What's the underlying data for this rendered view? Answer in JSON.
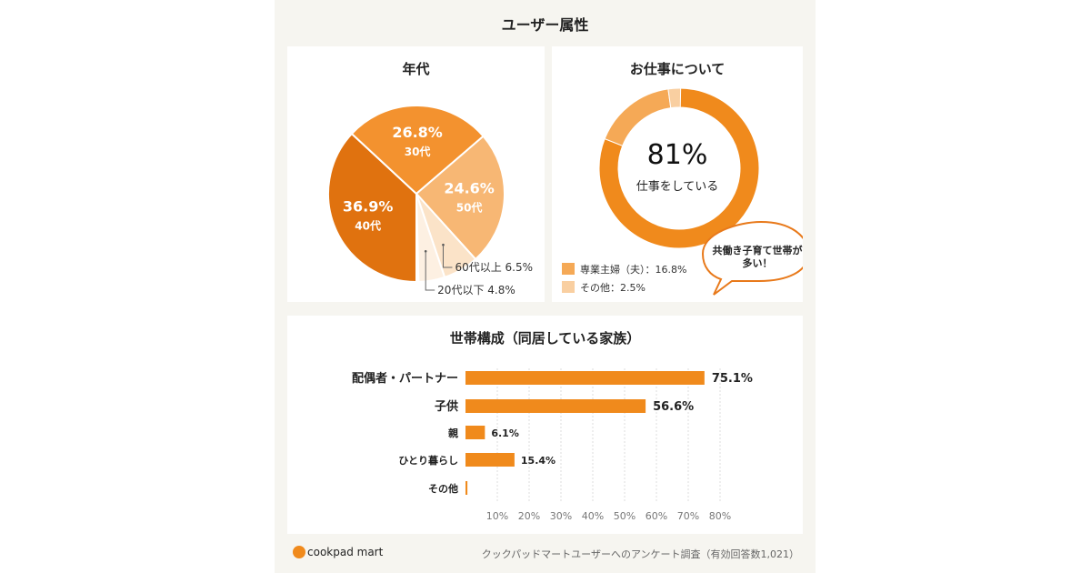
{
  "title": "ユーザー属性",
  "chart_data": [
    {
      "type": "pie",
      "title": "年代",
      "slices": [
        {
          "label": "40代",
          "value": 36.9,
          "display": "36.9%",
          "color": "#e0720f"
        },
        {
          "label": "30代",
          "value": 26.8,
          "display": "26.8%",
          "color": "#f3922f"
        },
        {
          "label": "50代",
          "value": 24.6,
          "display": "24.6%",
          "color": "#f7b774"
        },
        {
          "label": "60代以上",
          "value": 6.5,
          "display": "60代以上 6.5%",
          "color": "#fbe3c8"
        },
        {
          "label": "20代以下",
          "value": 4.8,
          "display": "20代以下 4.8%",
          "color": "#fdf0e2"
        }
      ]
    },
    {
      "type": "pie",
      "title": "お仕事について",
      "center_value": "81%",
      "center_label": "仕事をしている",
      "slices": [
        {
          "label": "仕事をしている",
          "value": 81,
          "color": "#f08a1c"
        },
        {
          "label": "専業主婦（夫）",
          "value": 16.8,
          "display": "専業主婦（夫）：16.8%",
          "color": "#f5a956"
        },
        {
          "label": "その他",
          "value": 2.5,
          "display": "その他：2.5%",
          "color": "#f9cfa1"
        }
      ],
      "callout": "共働き子育て世帯が多い！"
    },
    {
      "type": "bar",
      "title": "世帯構成（同居している家族）",
      "orientation": "horizontal",
      "categories": [
        "配偶者・パートナー",
        "子供",
        "親",
        "ひとり暮らし",
        "その他"
      ],
      "values": [
        75.1,
        56.6,
        6.1,
        15.4,
        0.6
      ],
      "labels": [
        "75.1%",
        "56.6%",
        "6.1%",
        "15.4%",
        ""
      ],
      "xticks": [
        "10%",
        "20%",
        "30%",
        "40%",
        "50%",
        "60%",
        "70%",
        "80%"
      ],
      "xlim": [
        0,
        80
      ],
      "color": "#f08a1c"
    }
  ],
  "footer": {
    "logo": "cookpad mart",
    "note": "クックパッドマートユーザーへのアンケート調査（有効回答数1,021）"
  }
}
